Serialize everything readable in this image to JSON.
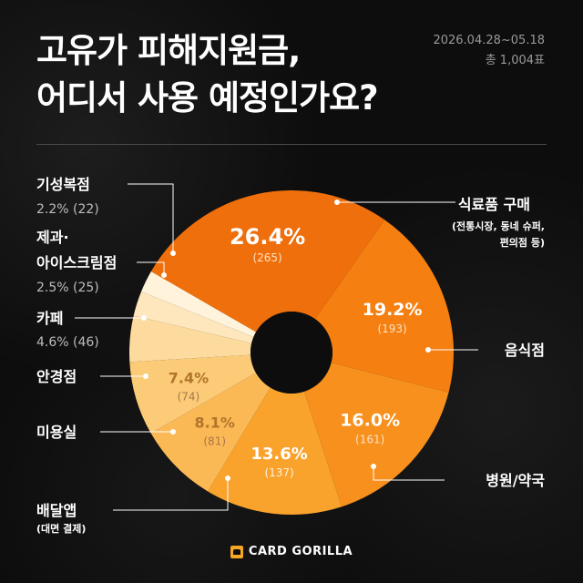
{
  "header": {
    "title_line1": "고유가 피해지원금,",
    "title_line2": "어디서 사용 예정인가요?",
    "period": "2026.04.28~05.18",
    "votes": "총 1,004표"
  },
  "footer": {
    "brand": "CARD GORILLA"
  },
  "colors": {
    "background": "#0d0d0d",
    "accent": "#f07a12",
    "text": "#ffffff"
  },
  "chart_data": {
    "type": "pie",
    "donut": true,
    "start_category": "식료품 구매",
    "direction": "clockwise",
    "slices": [
      {
        "name": "식료품 구매",
        "sub": "(전통시장, 동네 슈퍼,",
        "sub2": "편의점 등)",
        "percent": "26.4%",
        "count": "(265)",
        "value": 265,
        "color": "#ef6f0c"
      },
      {
        "name": "음식점",
        "percent": "19.2%",
        "count": "(193)",
        "value": 193,
        "color": "#f57f10"
      },
      {
        "name": "병원/약국",
        "percent": "16.0%",
        "count": "(161)",
        "value": 161,
        "color": "#f7901c"
      },
      {
        "name": "배달앱",
        "sub": "(대면 결제)",
        "percent": "13.6%",
        "count": "(137)",
        "value": 137,
        "color": "#f9a22c"
      },
      {
        "name": "미용실",
        "percent": "8.1%",
        "count": "(81)",
        "value": 81,
        "color": "#fbb955"
      },
      {
        "name": "안경점",
        "percent": "7.4%",
        "count": "(74)",
        "value": 74,
        "color": "#fccb78"
      },
      {
        "name": "카페",
        "percent": "4.6%",
        "count": "(46)",
        "value": 46,
        "color": "#fddb9e"
      },
      {
        "name": "제과·아이스크림점",
        "name_line1": "제과·",
        "name_line2": "아이스크림점",
        "percent": "2.5%",
        "count": "(25)",
        "value": 25,
        "color": "#fee7bd"
      },
      {
        "name": "기성복점",
        "percent": "2.2%",
        "count": "(22)",
        "value": 22,
        "color": "#fff3dc"
      }
    ]
  }
}
